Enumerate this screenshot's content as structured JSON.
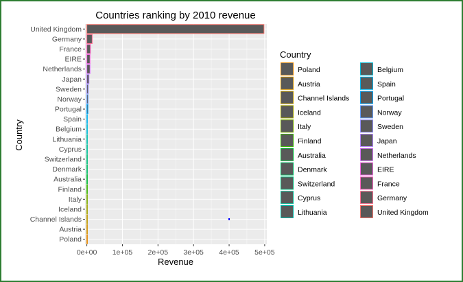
{
  "chart_data": {
    "type": "bar",
    "orientation": "horizontal",
    "title": "Countries ranking by 2010 revenue",
    "xlabel": "Revenue",
    "ylabel": "Country",
    "xlim": [
      -5000,
      506000
    ],
    "x_ticks": [
      0,
      100000,
      200000,
      300000,
      400000,
      500000
    ],
    "x_tick_labels": [
      "0e+00",
      "1e+05",
      "2e+05",
      "3e+05",
      "4e+05",
      "5e+05"
    ],
    "grid": true,
    "legend_title": "Country",
    "legend_position": "right",
    "categories": [
      "United Kingdom",
      "Germany",
      "France",
      "EIRE",
      "Netherlands",
      "Japan",
      "Sweden",
      "Norway",
      "Portugal",
      "Spain",
      "Belgium",
      "Lithuania",
      "Cyprus",
      "Switzerland",
      "Denmark",
      "Australia",
      "Finland",
      "Italy",
      "Iceland",
      "Channel Islands",
      "Austria",
      "Poland"
    ],
    "values": [
      498000,
      15000,
      10000,
      9000,
      9000,
      6000,
      4000,
      3500,
      3000,
      1200,
      1000,
      900,
      800,
      700,
      600,
      500,
      500,
      400,
      400,
      300,
      200,
      150
    ],
    "colors": [
      "#F8766D",
      "#FF6C91",
      "#FF61C3",
      "#F564E3",
      "#DB72FB",
      "#B385FF",
      "#9590FF",
      "#619CFF",
      "#00A9FF",
      "#00B4EF",
      "#00BCD8",
      "#00C0AF",
      "#00C19A",
      "#00BF7D",
      "#00BE67",
      "#00BA38",
      "#39B600",
      "#7CAE00",
      "#A3A500",
      "#C09B00",
      "#D39200",
      "#E58700"
    ],
    "legend_col1": [
      {
        "label": "Poland",
        "color": "#E58700"
      },
      {
        "label": "Austria",
        "color": "#D39200"
      },
      {
        "label": "Channel Islands",
        "color": "#C09B00"
      },
      {
        "label": "Iceland",
        "color": "#A3A500"
      },
      {
        "label": "Italy",
        "color": "#7CAE00"
      },
      {
        "label": "Finland",
        "color": "#39B600"
      },
      {
        "label": "Australia",
        "color": "#00BA38"
      },
      {
        "label": "Denmark",
        "color": "#00BE67"
      },
      {
        "label": "Switzerland",
        "color": "#00BF7D"
      },
      {
        "label": "Cyprus",
        "color": "#00C19A"
      },
      {
        "label": "Lithuania",
        "color": "#00C0AF"
      }
    ],
    "legend_col2": [
      {
        "label": "Belgium",
        "color": "#00BCD8"
      },
      {
        "label": "Spain",
        "color": "#00B4EF"
      },
      {
        "label": "Portugal",
        "color": "#00A9FF"
      },
      {
        "label": "Norway",
        "color": "#619CFF"
      },
      {
        "label": "Sweden",
        "color": "#9590FF"
      },
      {
        "label": "Japan",
        "color": "#B385FF"
      },
      {
        "label": "Netherlands",
        "color": "#DB72FB"
      },
      {
        "label": "EIRE",
        "color": "#F564E3"
      },
      {
        "label": "France",
        "color": "#FF61C3"
      },
      {
        "label": "Germany",
        "color": "#FF6C91"
      },
      {
        "label": "United Kingdom",
        "color": "#F8766D"
      }
    ],
    "bar_fill": "#595959",
    "panel_background": "#EBEBEB",
    "stray_point": {
      "x": 400000,
      "category": "Channel Islands",
      "color": "#0000FF"
    }
  }
}
